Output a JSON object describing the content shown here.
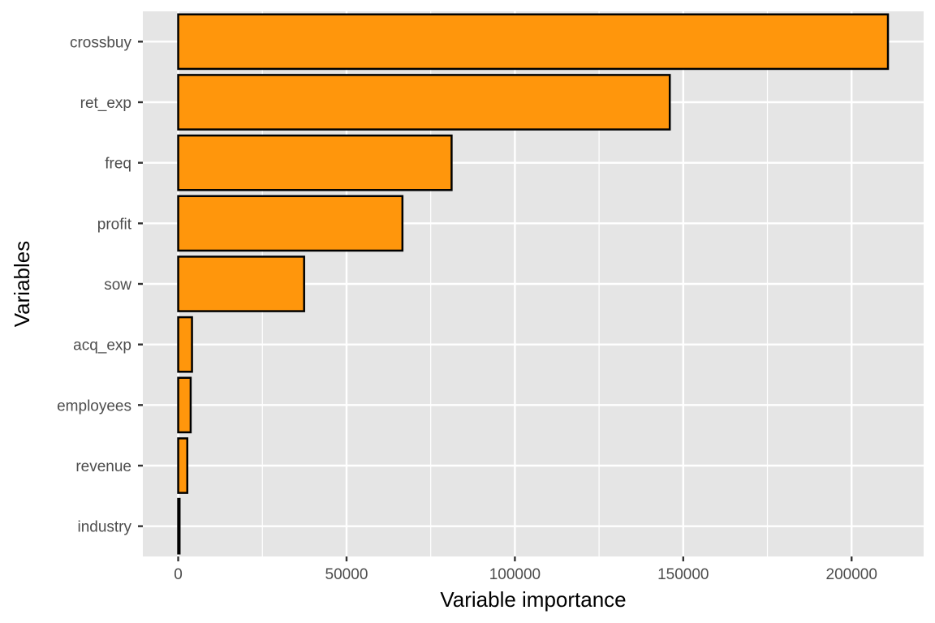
{
  "chart_data": {
    "type": "bar",
    "orientation": "horizontal",
    "categories": [
      "crossbuy",
      "ret_exp",
      "freq",
      "profit",
      "sow",
      "acq_exp",
      "employees",
      "revenue",
      "industry"
    ],
    "values": [
      210800,
      146000,
      81200,
      66600,
      37400,
      4100,
      3700,
      2700,
      400
    ],
    "xlabel": "Variable importance",
    "ylabel": "Variables",
    "xlim": [
      -10500,
      221400
    ],
    "x_ticks": [
      0,
      50000,
      100000,
      150000,
      200000
    ],
    "x_tick_labels": [
      "0",
      "50000",
      "100000",
      "150000",
      "200000"
    ],
    "grid": true,
    "legend": "none",
    "colors": {
      "bar_fill": "#FF960C",
      "bar_stroke": "#000000",
      "panel_bg": "#E5E5E5",
      "grid": "#FFFFFF"
    }
  }
}
